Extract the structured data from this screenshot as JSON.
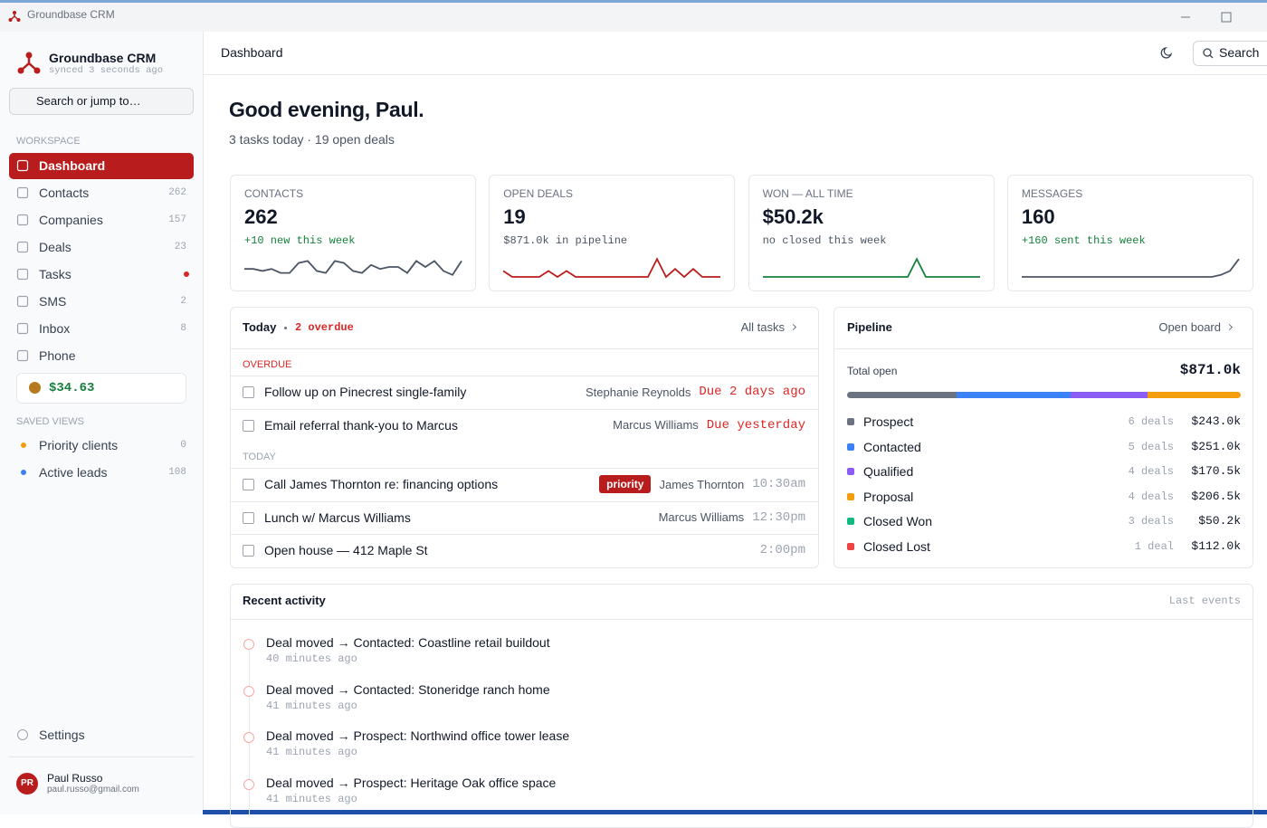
{
  "window": {
    "title": "Groundbase CRM"
  },
  "sidebar": {
    "app_name": "Groundbase CRM",
    "sync_status": "synced 3 seconds ago",
    "search_placeholder": "Search or jump to…",
    "workspace_heading": "WORKSPACE",
    "nav": [
      {
        "label": "Dashboard",
        "active": true
      },
      {
        "label": "Contacts",
        "count": "262"
      },
      {
        "label": "Companies",
        "count": "157"
      },
      {
        "label": "Deals",
        "count": "23"
      },
      {
        "label": "Tasks"
      },
      {
        "label": "SMS",
        "count": "2"
      },
      {
        "label": "Inbox",
        "count": "8"
      },
      {
        "label": "Phone"
      }
    ],
    "balance": "$34.63",
    "saved_views_heading": "SAVED VIEWS",
    "saved_views": [
      {
        "label": "Priority clients",
        "count": "0",
        "color": "#f59e0b"
      },
      {
        "label": "Active leads",
        "count": "108",
        "color": "#3b82f6"
      }
    ],
    "settings": "Settings",
    "user": {
      "initials": "PR",
      "name": "Paul Russo",
      "email": "paul.russo@gmail.com"
    }
  },
  "topbar": {
    "title": "Dashboard",
    "search": "Search"
  },
  "greeting": {
    "title": "Good evening, Paul.",
    "subtitle": "3 tasks today · 19 open deals"
  },
  "stats": [
    {
      "label": "CONTACTS",
      "value": "262",
      "note": "+10 new this week",
      "note_color": "#15803d",
      "line_color": "#4b5563",
      "sparkline_ylim": [
        0,
        10
      ],
      "sparkline": [
        4,
        4,
        3,
        4,
        2,
        2,
        7,
        8,
        3,
        2,
        8,
        7,
        3,
        2,
        6,
        4,
        5,
        5,
        2,
        8,
        5,
        8,
        3,
        1,
        8
      ]
    },
    {
      "label": "OPEN DEALS",
      "value": "19",
      "note": "$871.0k in pipeline",
      "note_color": "#4b5563",
      "line_color": "#b91c1c",
      "sparkline_ylim": [
        0,
        10
      ],
      "sparkline": [
        3,
        0,
        0,
        0,
        0,
        3,
        0,
        3,
        0,
        0,
        0,
        0,
        0,
        0,
        0,
        0,
        0,
        9,
        0,
        4,
        0,
        4,
        0,
        0,
        0
      ]
    },
    {
      "label": "WON — ALL TIME",
      "value": "$50.2k",
      "note": "no closed this week",
      "note_color": "#4b5563",
      "line_color": "#15803d",
      "sparkline_ylim": [
        0,
        10
      ],
      "sparkline": [
        0,
        0,
        0,
        0,
        0,
        0,
        0,
        0,
        0,
        0,
        0,
        0,
        0,
        0,
        0,
        0,
        0,
        9,
        0,
        0,
        0,
        0,
        0,
        0,
        0
      ]
    },
    {
      "label": "MESSAGES",
      "value": "160",
      "note": "+160 sent this week",
      "note_color": "#15803d",
      "line_color": "#4b5563",
      "sparkline_ylim": [
        0,
        10
      ],
      "sparkline": [
        0,
        0,
        0,
        0,
        0,
        0,
        0,
        0,
        0,
        0,
        0,
        0,
        0,
        0,
        0,
        0,
        0,
        0,
        0,
        0,
        0,
        0,
        1,
        3,
        9
      ]
    }
  ],
  "tasks": {
    "title": "Today",
    "overdue_summary": "2 overdue",
    "link": "All tasks",
    "groups": [
      {
        "heading": "OVERDUE",
        "due_color": "#dc2626",
        "items": [
          {
            "text": "Follow up on Pinecrest single-family",
            "person": "Stephanie Reynolds",
            "due": "Due 2 days ago"
          },
          {
            "text": "Email referral thank-you to Marcus",
            "person": "Marcus Williams",
            "due": "Due yesterday"
          }
        ]
      },
      {
        "heading": "TODAY",
        "due_color": "#9ca3af",
        "items": [
          {
            "text": "Call James Thornton re: financing options",
            "tag": "priority",
            "person": "James Thornton",
            "due": "10:30am"
          },
          {
            "text": "Lunch w/ Marcus Williams",
            "person": "Marcus Williams",
            "due": "12:30pm"
          },
          {
            "text": "Open house — 412 Maple St",
            "due": "2:00pm"
          }
        ]
      }
    ]
  },
  "pipeline": {
    "title": "Pipeline",
    "link": "Open board",
    "total_label": "Total open",
    "total": "$871.0k",
    "stages": [
      {
        "name": "Prospect",
        "color": "#6b7280",
        "deals": "6 deals",
        "amount_label": "$243.0k",
        "amount": 243000,
        "in_total_open": true
      },
      {
        "name": "Contacted",
        "color": "#3b82f6",
        "deals": "5 deals",
        "amount_label": "$251.0k",
        "amount": 251000,
        "in_total_open": true
      },
      {
        "name": "Qualified",
        "color": "#8b5cf6",
        "deals": "4 deals",
        "amount_label": "$170.5k",
        "amount": 170500,
        "in_total_open": true
      },
      {
        "name": "Proposal",
        "color": "#f59e0b",
        "deals": "4 deals",
        "amount_label": "$206.5k",
        "amount": 206500,
        "in_total_open": true
      },
      {
        "name": "Closed Won",
        "color": "#10b981",
        "deals": "3 deals",
        "amount_label": "$50.2k",
        "amount": 50200,
        "in_total_open": false
      },
      {
        "name": "Closed Lost",
        "color": "#ef4444",
        "deals": "1 deal",
        "amount_label": "$112.0k",
        "amount": 112000,
        "in_total_open": false
      }
    ]
  },
  "activity": {
    "title": "Recent activity",
    "link": "Last events",
    "items": [
      {
        "title": "Deal moved → Contacted: Coastline retail buildout",
        "time": "40 minutes ago"
      },
      {
        "title": "Deal moved → Contacted: Stoneridge ranch home",
        "time": "41 minutes ago"
      },
      {
        "title": "Deal moved → Prospect: Northwind office tower lease",
        "time": "41 minutes ago"
      },
      {
        "title": "Deal moved → Prospect: Heritage Oak office space",
        "time": "41 minutes ago"
      }
    ]
  }
}
